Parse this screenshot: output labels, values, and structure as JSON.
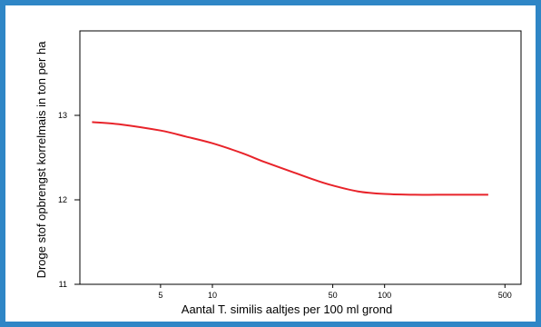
{
  "chart_data": {
    "type": "line",
    "title": "",
    "xlabel": "Aantal T. similis aaltjes per 100 ml grond",
    "ylabel": "Droge stof opbrengst korrelmais in ton per ha",
    "x_scale": "log",
    "xlim": [
      1.7,
      620
    ],
    "ylim": [
      11,
      14
    ],
    "x_ticks": [
      5,
      10,
      50,
      100,
      500
    ],
    "x_tick_labels": [
      "5",
      "10",
      "50",
      "100",
      "500"
    ],
    "y_ticks": [
      11,
      12,
      13
    ],
    "y_tick_labels": [
      "11",
      "12",
      "13"
    ],
    "grid": false,
    "legend": "none",
    "series": [
      {
        "color": "#e8232a",
        "x": [
          2,
          3,
          5,
          7,
          10,
          15,
          20,
          30,
          40,
          50,
          70,
          100,
          150,
          200,
          300,
          400
        ],
        "y": [
          12.92,
          12.89,
          12.82,
          12.75,
          12.67,
          12.55,
          12.45,
          12.32,
          12.23,
          12.17,
          12.1,
          12.07,
          12.06,
          12.06,
          12.06,
          12.06
        ]
      }
    ]
  }
}
